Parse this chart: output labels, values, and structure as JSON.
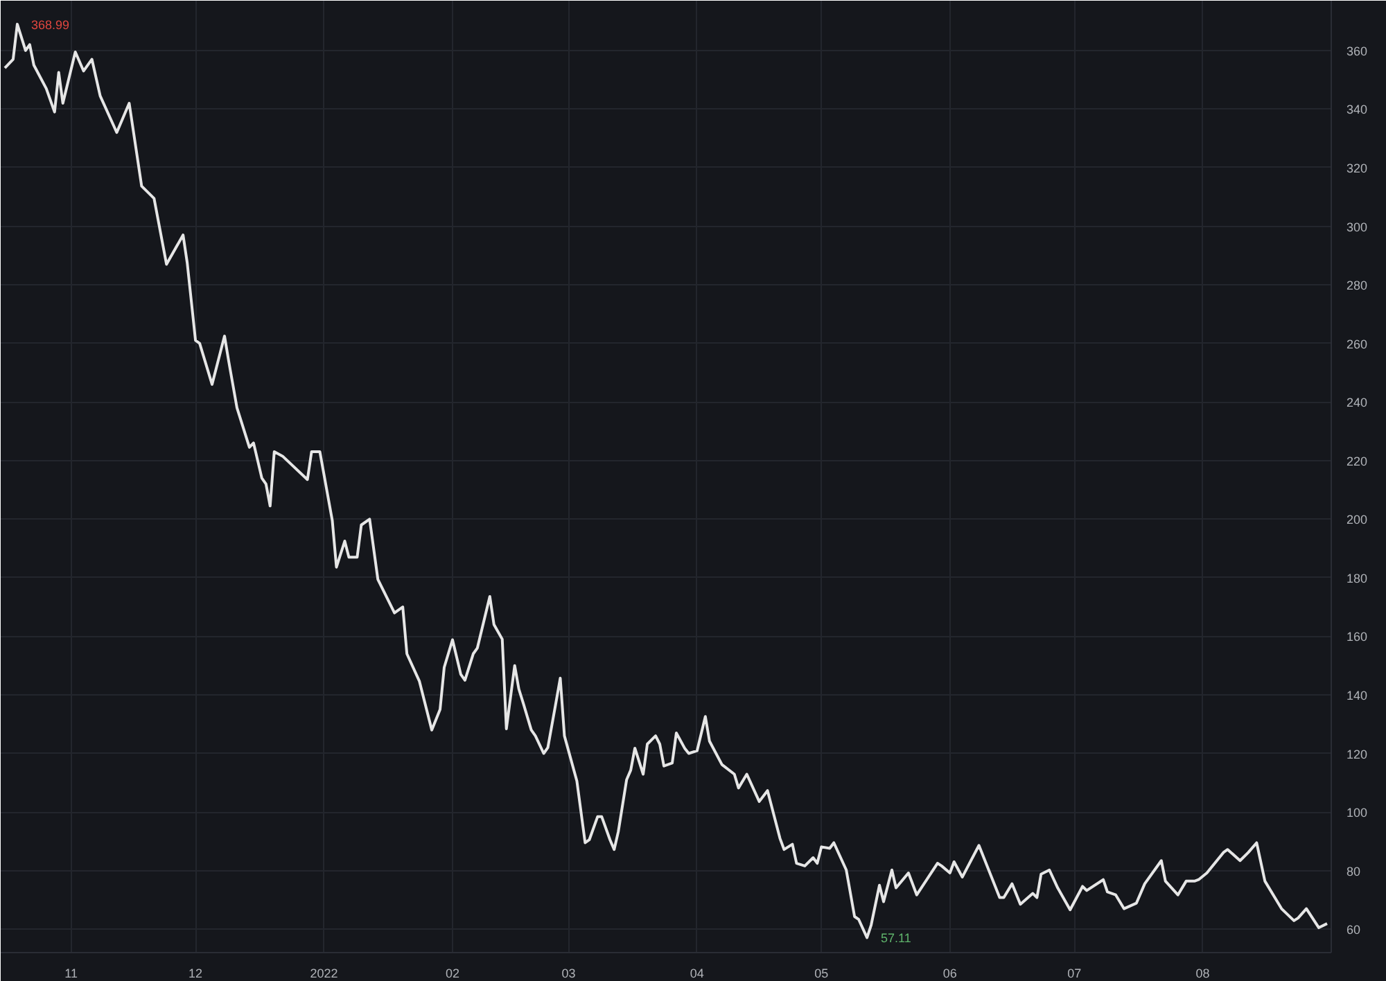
{
  "chart_data": {
    "type": "line",
    "x": [
      "2021-10-16",
      "2021-10-18",
      "2021-10-19",
      "2021-10-21",
      "2021-10-22",
      "2021-10-23",
      "2021-10-26",
      "2021-10-28",
      "2021-10-29",
      "2021-10-30",
      "2021-11-02",
      "2021-11-04",
      "2021-11-06",
      "2021-11-08",
      "2021-11-12",
      "2021-11-15",
      "2021-11-18",
      "2021-11-21",
      "2021-11-24",
      "2021-11-28",
      "2021-11-29",
      "2021-12-01",
      "2021-12-02",
      "2021-12-05",
      "2021-12-08",
      "2021-12-09",
      "2021-12-11",
      "2021-12-14",
      "2021-12-15",
      "2021-12-17",
      "2021-12-18",
      "2021-12-19",
      "2021-12-20",
      "2021-12-22",
      "2021-12-28",
      "2021-12-29",
      "2021-12-31",
      "2022-01-03",
      "2022-01-04",
      "2022-01-06",
      "2022-01-07",
      "2022-01-09",
      "2022-01-10",
      "2022-01-12",
      "2022-01-14",
      "2022-01-18",
      "2022-01-20",
      "2022-01-21",
      "2022-01-24",
      "2022-01-27",
      "2022-01-29",
      "2022-01-30",
      "2022-02-01",
      "2022-02-03",
      "2022-02-04",
      "2022-02-06",
      "2022-02-07",
      "2022-02-10",
      "2022-02-11",
      "2022-02-13",
      "2022-02-14",
      "2022-02-16",
      "2022-02-17",
      "2022-02-18",
      "2022-02-20",
      "2022-02-21",
      "2022-02-23",
      "2022-02-24",
      "2022-02-26",
      "2022-02-27",
      "2022-02-28",
      "2022-03-03",
      "2022-03-05",
      "2022-03-06",
      "2022-03-08",
      "2022-03-09",
      "2022-03-11",
      "2022-03-12",
      "2022-03-13",
      "2022-03-15",
      "2022-03-16",
      "2022-03-17",
      "2022-03-19",
      "2022-03-20",
      "2022-03-22",
      "2022-03-23",
      "2022-03-24",
      "2022-03-26",
      "2022-03-27",
      "2022-03-29",
      "2022-03-30",
      "2022-04-01",
      "2022-04-03",
      "2022-04-04",
      "2022-04-07",
      "2022-04-10",
      "2022-04-11",
      "2022-04-13",
      "2022-04-16",
      "2022-04-18",
      "2022-04-21",
      "2022-04-22",
      "2022-04-24",
      "2022-04-25",
      "2022-04-27",
      "2022-04-29",
      "2022-04-30",
      "2022-05-01",
      "2022-05-03",
      "2022-05-04",
      "2022-05-07",
      "2022-05-09",
      "2022-05-10",
      "2022-05-12",
      "2022-05-13",
      "2022-05-15",
      "2022-05-16",
      "2022-05-18",
      "2022-05-19",
      "2022-05-22",
      "2022-05-24",
      "2022-05-29",
      "2022-05-30",
      "2022-06-01",
      "2022-06-02",
      "2022-06-04",
      "2022-06-08",
      "2022-06-13",
      "2022-06-14",
      "2022-06-16",
      "2022-06-18",
      "2022-06-21",
      "2022-06-22",
      "2022-06-23",
      "2022-06-25",
      "2022-06-27",
      "2022-06-30",
      "2022-07-03",
      "2022-07-04",
      "2022-07-08",
      "2022-07-09",
      "2022-07-11",
      "2022-07-13",
      "2022-07-16",
      "2022-07-18",
      "2022-07-22",
      "2022-07-23",
      "2022-07-26",
      "2022-07-28",
      "2022-07-30",
      "2022-07-31",
      "2022-08-02",
      "2022-08-06",
      "2022-08-07",
      "2022-08-10",
      "2022-08-12",
      "2022-08-14",
      "2022-08-16",
      "2022-08-20",
      "2022-08-23",
      "2022-08-24",
      "2022-08-26",
      "2022-08-29",
      "2022-08-31"
    ],
    "series": [
      {
        "color": "#e6e6e6",
        "values": [
          354,
          357,
          368.99,
          360,
          362,
          355,
          347,
          339,
          352.5,
          342,
          359.5,
          353,
          357,
          344.5,
          332,
          342,
          313.7,
          309.5,
          287,
          297,
          287.5,
          261,
          260,
          246,
          262.5,
          254,
          238,
          224.5,
          226,
          214,
          212,
          204.5,
          223,
          221.5,
          213.5,
          223,
          223,
          199.5,
          183.6,
          192.5,
          187,
          187,
          198,
          200,
          179.4,
          168,
          170,
          154,
          144.7,
          128,
          135,
          149.4,
          158.8,
          147,
          145,
          154,
          156,
          173.6,
          164,
          159,
          128.4,
          150,
          142,
          137.5,
          128,
          126,
          120,
          122,
          137.7,
          145.7,
          126,
          110.6,
          89.5,
          90.5,
          98.4,
          98.4,
          90.5,
          87.2,
          93.3,
          111,
          114.3,
          121.8,
          112.9,
          123.2,
          126,
          123.2,
          115.7,
          116.7,
          127,
          121.8,
          120,
          120.9,
          132.6,
          124.2,
          116.2,
          112.9,
          108.2,
          112.9,
          103.6,
          107.3,
          91,
          87.2,
          89,
          82.5,
          81.6,
          84.4,
          82.5,
          88.1,
          87.6,
          89.5,
          80.2,
          64.3,
          63.3,
          57.11,
          61.4,
          75,
          69.4,
          80.2,
          74.1,
          79.2,
          71.7,
          82.5,
          81.6,
          79.2,
          83,
          77.8,
          88.6,
          70.8,
          70.8,
          75.5,
          68.5,
          72.2,
          70.8,
          78.8,
          80.2,
          74.1,
          66.6,
          74.6,
          73.2,
          76.9,
          72.7,
          71.7,
          67,
          68.9,
          75.5,
          83.4,
          76.4,
          71.7,
          76.4,
          76.4,
          76.9,
          79.2,
          86.2,
          87.2,
          83.4,
          86.2,
          89.5,
          76.4,
          67,
          62.9,
          63.8,
          67,
          60.5,
          61.9
        ]
      }
    ],
    "annotations": [
      {
        "text": "368.99",
        "x": "2021-10-19",
        "y": 368.99
      },
      {
        "text": "57.11",
        "x": "2022-05-12",
        "y": 57.11
      }
    ],
    "xlim": [
      "2021-10-15",
      "2022-09-01"
    ],
    "xticks": [
      {
        "value": "2021-11-01",
        "label": "11"
      },
      {
        "value": "2021-12-01",
        "label": "12"
      },
      {
        "value": "2022-01-01",
        "label": "2022"
      },
      {
        "value": "2022-02-01",
        "label": "02"
      },
      {
        "value": "2022-03-01",
        "label": "03"
      },
      {
        "value": "2022-04-01",
        "label": "04"
      },
      {
        "value": "2022-05-01",
        "label": "05"
      },
      {
        "value": "2022-06-01",
        "label": "06"
      },
      {
        "value": "2022-07-01",
        "label": "07"
      },
      {
        "value": "2022-08-01",
        "label": "08"
      }
    ],
    "ylim": [
      52,
      377
    ],
    "yticks": [
      60,
      80,
      100,
      120,
      140,
      160,
      180,
      200,
      220,
      240,
      260,
      280,
      300,
      320,
      340,
      360
    ],
    "grid": true,
    "marker": "none",
    "line_style": "solid"
  }
}
